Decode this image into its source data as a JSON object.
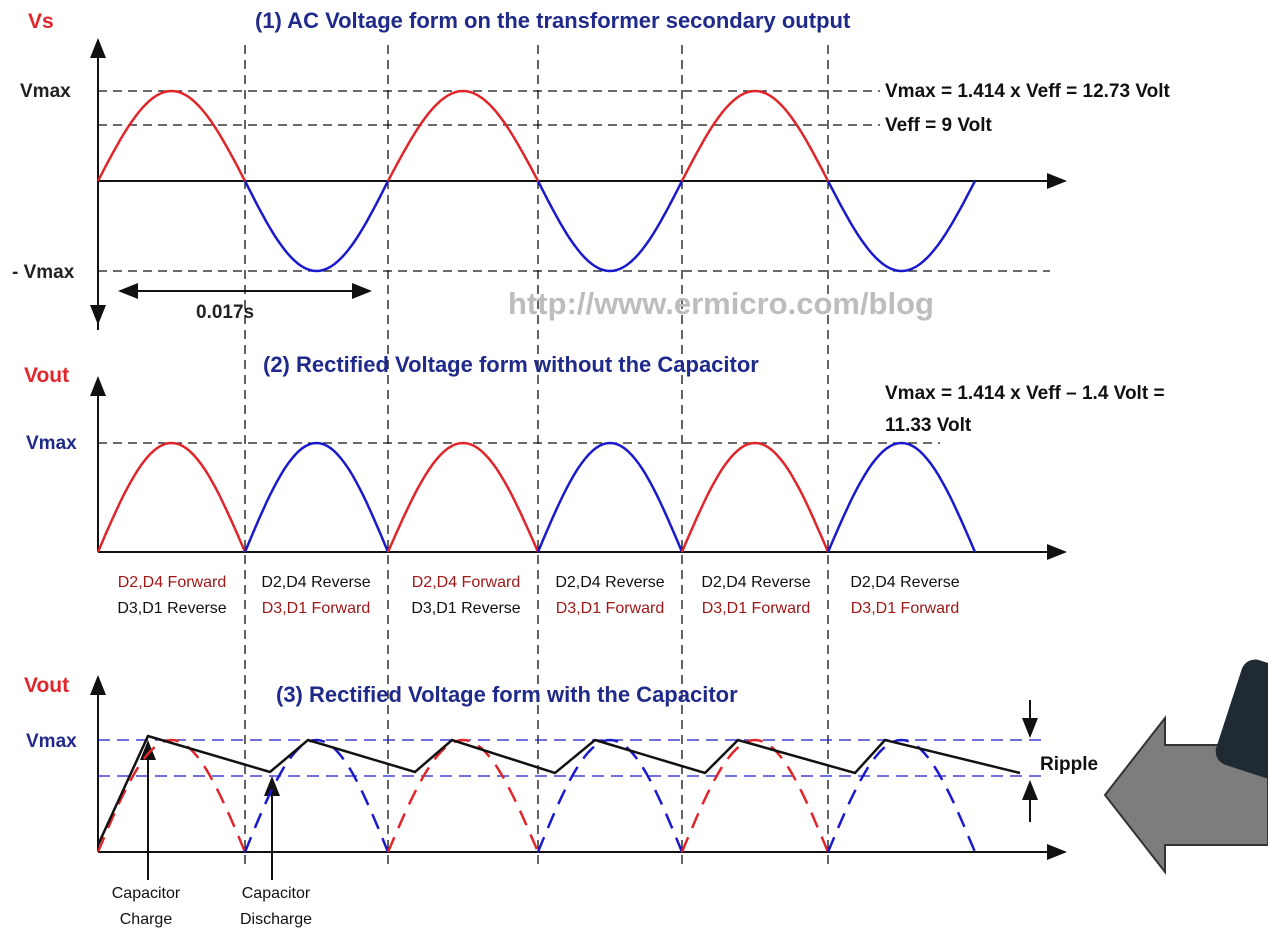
{
  "panel1": {
    "title": "(1)  AC Voltage form on the transformer secondary output",
    "y_label": "Vs",
    "vmax": "Vmax",
    "neg_vmax": "- Vmax",
    "vmax_note": "Vmax = 1.414 x Veff = 12.73 Volt",
    "veff_note": "Veff = 9 Volt",
    "period": "0.017s"
  },
  "watermark": "http://www.ermicro.com/blog",
  "panel2": {
    "title": "(2)  Rectified Voltage form without the Capacitor",
    "y_label": "Vout",
    "vmax": "Vmax",
    "vmax_note": [
      "Vmax = 1.414 x Veff – 1.4 Volt =",
      "11.33 Volt"
    ]
  },
  "diode_states": [
    [
      "D2,D4 Forward",
      "D3,D1 Reverse"
    ],
    [
      "D2,D4 Reverse",
      "D3,D1 Forward"
    ],
    [
      "D2,D4 Forward",
      "D3,D1 Reverse"
    ],
    [
      "D2,D4 Reverse",
      "D3,D1 Forward"
    ],
    [
      "D2,D4 Reverse",
      "D3,D1 Forward"
    ],
    [
      "D2,D4 Reverse",
      "D3,D1 Forward"
    ]
  ],
  "panel3": {
    "title": "(3)  Rectified Voltage form with the Capacitor",
    "y_label": "Vout",
    "vmax": "Vmax",
    "ripple": "Ripple",
    "charge_label": [
      "Capacitor",
      "Charge"
    ],
    "discharge_label": [
      "Capacitor",
      "Discharge"
    ]
  }
}
